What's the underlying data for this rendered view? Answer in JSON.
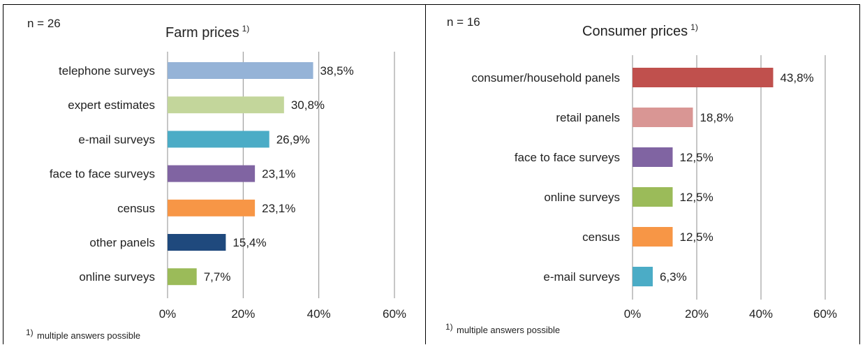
{
  "chart_data": [
    {
      "type": "bar",
      "orientation": "horizontal",
      "sample_size": "n = 26",
      "title": "Farm prices",
      "title_sup": "1)",
      "footnote_sup": "1)",
      "footnote": "multiple answers possible",
      "categories": [
        "telephone surveys",
        "expert estimates",
        "e-mail surveys",
        "face to face surveys",
        "census",
        "other panels",
        "online surveys"
      ],
      "values": [
        38.5,
        30.8,
        26.9,
        23.1,
        23.1,
        15.4,
        7.7
      ],
      "value_labels": [
        "38,5%",
        "30,8%",
        "26,9%",
        "23,1%",
        "23,1%",
        "15,4%",
        "7,7%"
      ],
      "colors": [
        "#95b3d7",
        "#c3d69b",
        "#4bacc6",
        "#8064a2",
        "#f79646",
        "#1f497d",
        "#9bbb59"
      ],
      "xlim": [
        0,
        60
      ],
      "xticks": [
        0,
        20,
        40,
        60
      ],
      "xtick_labels": [
        "0%",
        "20%",
        "40%",
        "60%"
      ],
      "grid": "vertical",
      "legend": "none"
    },
    {
      "type": "bar",
      "orientation": "horizontal",
      "sample_size": "n = 16",
      "title": "Consumer prices",
      "title_sup": "1)",
      "footnote_sup": "1)",
      "footnote": "multiple answers possible",
      "categories": [
        "consumer/household panels",
        "retail panels",
        "face to face surveys",
        "online surveys",
        "census",
        "e-mail surveys"
      ],
      "values": [
        43.8,
        18.8,
        12.5,
        12.5,
        12.5,
        6.3
      ],
      "value_labels": [
        "43,8%",
        "18,8%",
        "12,5%",
        "12,5%",
        "12,5%",
        "6,3%"
      ],
      "colors": [
        "#c0504d",
        "#d99694",
        "#8064a2",
        "#9bbb59",
        "#f79646",
        "#4bacc6"
      ],
      "xlim": [
        0,
        60
      ],
      "xticks": [
        0,
        20,
        40,
        60
      ],
      "xtick_labels": [
        "0%",
        "20%",
        "40%",
        "60%"
      ],
      "grid": "vertical",
      "legend": "none"
    }
  ]
}
